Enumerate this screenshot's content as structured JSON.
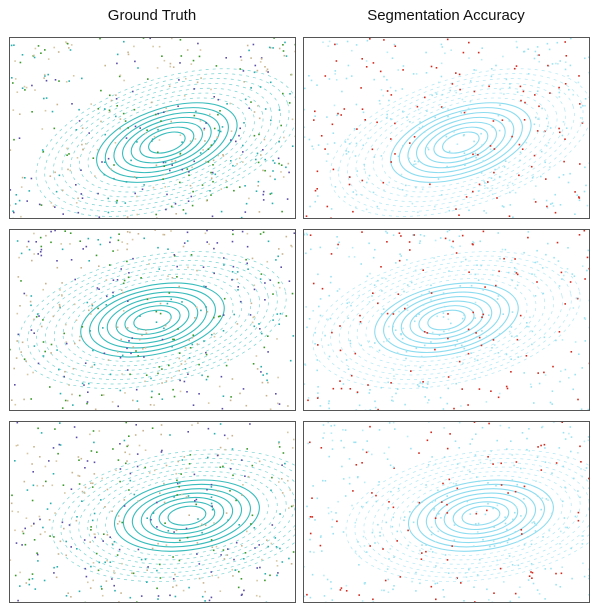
{
  "columns": [
    "Ground Truth",
    "Segmentation Accuracy"
  ]
}
